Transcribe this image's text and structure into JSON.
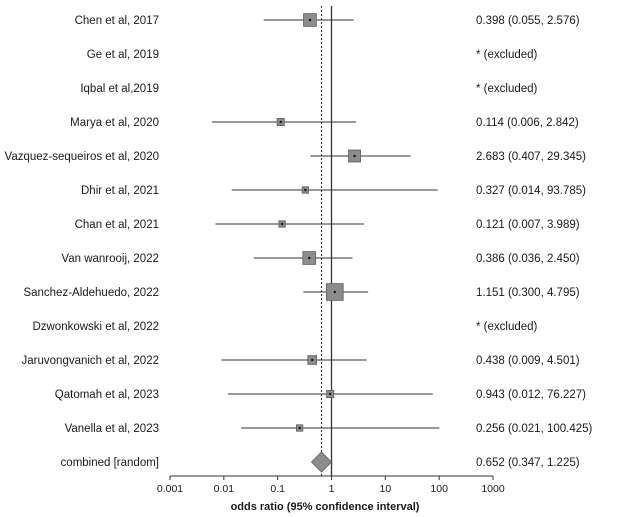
{
  "chart_data": {
    "type": "forest",
    "xlabel": "odds ratio (95% confidence interval)",
    "xscale": "log",
    "xlim": [
      0.001,
      1000
    ],
    "xticks": [
      {
        "value": 0.001,
        "label": "0.001"
      },
      {
        "value": 0.01,
        "label": "0.01"
      },
      {
        "value": 0.1,
        "label": "0.1"
      },
      {
        "value": 1,
        "label": "1"
      },
      {
        "value": 10,
        "label": "10"
      },
      {
        "value": 100,
        "label": "100"
      },
      {
        "value": 1000,
        "label": "1000"
      }
    ],
    "reference_line": 1,
    "pooled_line": 0.652,
    "studies": [
      {
        "label": "Chen et al, 2017",
        "or": 0.398,
        "lo": 0.055,
        "hi": 2.576,
        "weight": 1.6,
        "text": "0.398 (0.055, 2.576)"
      },
      {
        "label": "Ge et al, 2019",
        "excluded": true,
        "text": "* (excluded)"
      },
      {
        "label": "Iqbal et al,2019",
        "excluded": true,
        "text": "* (excluded)"
      },
      {
        "label": "Marya et al, 2020",
        "or": 0.114,
        "lo": 0.006,
        "hi": 2.842,
        "weight": 0.9,
        "text": "0.114 (0.006, 2.842)"
      },
      {
        "label": "Vazquez-sequeiros et al, 2020",
        "or": 2.683,
        "lo": 0.407,
        "hi": 29.345,
        "weight": 1.5,
        "text": "2.683 (0.407, 29.345)"
      },
      {
        "label": "Dhir et al, 2021",
        "or": 0.327,
        "lo": 0.014,
        "hi": 93.785,
        "weight": 0.8,
        "text": "0.327 (0.014, 93.785)"
      },
      {
        "label": "Chan et al, 2021",
        "or": 0.121,
        "lo": 0.007,
        "hi": 3.989,
        "weight": 0.8,
        "text": "0.121 (0.007, 3.989)"
      },
      {
        "label": "Van wanrooij, 2022",
        "or": 0.386,
        "lo": 0.036,
        "hi": 2.45,
        "weight": 1.6,
        "text": "0.386 (0.036, 2.450)"
      },
      {
        "label": "Sanchez-Aldehuedo, 2022",
        "or": 1.151,
        "lo": 0.3,
        "hi": 4.795,
        "weight": 2.1,
        "text": "1.151 (0.300, 4.795)"
      },
      {
        "label": "Dzwonkowski et al, 2022",
        "excluded": true,
        "text": "* (excluded)"
      },
      {
        "label": "Jaruvongvanich et al, 2022",
        "or": 0.438,
        "lo": 0.009,
        "hi": 4.501,
        "weight": 1.1,
        "text": "0.438 (0.009, 4.501)"
      },
      {
        "label": "Qatomah et al, 2023",
        "or": 0.943,
        "lo": 0.012,
        "hi": 76.227,
        "weight": 0.9,
        "text": "0.943 (0.012, 76.227)"
      },
      {
        "label": "Vanella et al, 2023",
        "or": 0.256,
        "lo": 0.021,
        "hi": 100.425,
        "weight": 0.8,
        "text": "0.256 (0.021, 100.425)"
      }
    ],
    "combined": {
      "label": "combined [random]",
      "or": 0.652,
      "lo": 0.347,
      "hi": 1.225,
      "text": "0.652 (0.347, 1.225)"
    },
    "colors": {
      "marker": "#8c8c8c",
      "marker_stroke": "#5e5e5e",
      "line": "#333333",
      "text": "#1a1a1a"
    }
  }
}
